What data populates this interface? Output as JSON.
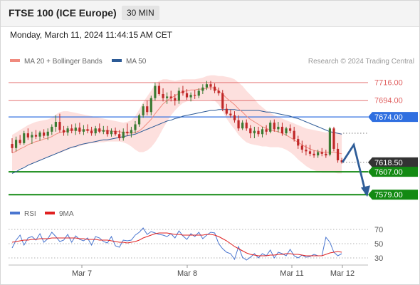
{
  "header": {
    "title": "FTSE 100 (ICE Europe)",
    "interval": "30 MIN"
  },
  "datetime": "Monday, March 11, 2024 11:44:15 AM CET",
  "legend": {
    "main": [
      {
        "label": "MA 20 + Bollinger Bands",
        "color": "#f08a7e"
      },
      {
        "label": "MA 50",
        "color": "#2c5a96"
      }
    ],
    "indicator": [
      {
        "label": "RSI",
        "color": "#4a76d0"
      },
      {
        "label": "9MA",
        "color": "#e02020"
      }
    ]
  },
  "credit": "Research © 2024 Trading Central",
  "colors": {
    "bull": "#3a7a32",
    "bear": "#c02828",
    "band_fill": "#fde0de",
    "ma20": "#f08a7e",
    "ma50": "#2c5a96",
    "pivot": "#2f6fe0",
    "support": "#138a13",
    "resistance": "#e06060",
    "arrow": "#2f5d98",
    "current": "#333333"
  },
  "chart_data": [
    {
      "type": "candlestick",
      "title": "FTSE 100 (ICE Europe) 30 MIN",
      "y_range": [
        7567,
        7729
      ],
      "levels": [
        {
          "value": 7716.0,
          "label": "7716.00",
          "kind": "resistance"
        },
        {
          "value": 7694.0,
          "label": "7694.00",
          "kind": "resistance"
        },
        {
          "value": 7674.0,
          "label": "7674.00",
          "kind": "pivot"
        },
        {
          "value": 7618.5,
          "label": "7618.50",
          "kind": "current"
        },
        {
          "value": 7607.0,
          "label": "7607.00",
          "kind": "support"
        },
        {
          "value": 7579.0,
          "label": "7579.00",
          "kind": "support"
        }
      ],
      "x_ticks": [
        "Mar 7",
        "Mar 8",
        "Mar 11",
        "Mar 12"
      ],
      "candles": [
        {
          "o": 7641,
          "h": 7648,
          "l": 7630,
          "c": 7636
        },
        {
          "o": 7636,
          "h": 7650,
          "l": 7632,
          "c": 7646
        },
        {
          "o": 7646,
          "h": 7652,
          "l": 7640,
          "c": 7642
        },
        {
          "o": 7642,
          "h": 7657,
          "l": 7640,
          "c": 7654
        },
        {
          "o": 7654,
          "h": 7660,
          "l": 7646,
          "c": 7649
        },
        {
          "o": 7649,
          "h": 7656,
          "l": 7641,
          "c": 7652
        },
        {
          "o": 7652,
          "h": 7658,
          "l": 7647,
          "c": 7650
        },
        {
          "o": 7650,
          "h": 7657,
          "l": 7645,
          "c": 7655
        },
        {
          "o": 7655,
          "h": 7659,
          "l": 7648,
          "c": 7651
        },
        {
          "o": 7651,
          "h": 7660,
          "l": 7646,
          "c": 7656
        },
        {
          "o": 7656,
          "h": 7665,
          "l": 7652,
          "c": 7662
        },
        {
          "o": 7662,
          "h": 7676,
          "l": 7656,
          "c": 7668
        },
        {
          "o": 7668,
          "h": 7678,
          "l": 7655,
          "c": 7658
        },
        {
          "o": 7658,
          "h": 7663,
          "l": 7651,
          "c": 7655
        },
        {
          "o": 7655,
          "h": 7663,
          "l": 7651,
          "c": 7660
        },
        {
          "o": 7660,
          "h": 7665,
          "l": 7654,
          "c": 7657
        },
        {
          "o": 7657,
          "h": 7666,
          "l": 7652,
          "c": 7661
        },
        {
          "o": 7661,
          "h": 7667,
          "l": 7653,
          "c": 7656
        },
        {
          "o": 7656,
          "h": 7664,
          "l": 7652,
          "c": 7659
        },
        {
          "o": 7659,
          "h": 7665,
          "l": 7654,
          "c": 7657
        },
        {
          "o": 7657,
          "h": 7662,
          "l": 7651,
          "c": 7654
        },
        {
          "o": 7654,
          "h": 7663,
          "l": 7651,
          "c": 7660
        },
        {
          "o": 7660,
          "h": 7666,
          "l": 7654,
          "c": 7656
        },
        {
          "o": 7656,
          "h": 7663,
          "l": 7653,
          "c": 7658
        },
        {
          "o": 7658,
          "h": 7663,
          "l": 7650,
          "c": 7653
        },
        {
          "o": 7653,
          "h": 7660,
          "l": 7650,
          "c": 7657
        },
        {
          "o": 7657,
          "h": 7661,
          "l": 7651,
          "c": 7653
        },
        {
          "o": 7653,
          "h": 7658,
          "l": 7645,
          "c": 7648
        },
        {
          "o": 7648,
          "h": 7660,
          "l": 7645,
          "c": 7656
        },
        {
          "o": 7656,
          "h": 7666,
          "l": 7651,
          "c": 7654
        },
        {
          "o": 7654,
          "h": 7662,
          "l": 7649,
          "c": 7658
        },
        {
          "o": 7658,
          "h": 7669,
          "l": 7654,
          "c": 7665
        },
        {
          "o": 7665,
          "h": 7678,
          "l": 7662,
          "c": 7676
        },
        {
          "o": 7676,
          "h": 7690,
          "l": 7673,
          "c": 7687
        },
        {
          "o": 7687,
          "h": 7694,
          "l": 7676,
          "c": 7680
        },
        {
          "o": 7680,
          "h": 7700,
          "l": 7676,
          "c": 7697
        },
        {
          "o": 7697,
          "h": 7716,
          "l": 7694,
          "c": 7712
        },
        {
          "o": 7712,
          "h": 7716,
          "l": 7700,
          "c": 7702
        },
        {
          "o": 7702,
          "h": 7709,
          "l": 7693,
          "c": 7697
        },
        {
          "o": 7697,
          "h": 7704,
          "l": 7690,
          "c": 7699
        },
        {
          "o": 7699,
          "h": 7706,
          "l": 7693,
          "c": 7697
        },
        {
          "o": 7697,
          "h": 7702,
          "l": 7688,
          "c": 7694
        },
        {
          "o": 7694,
          "h": 7710,
          "l": 7690,
          "c": 7706
        },
        {
          "o": 7706,
          "h": 7712,
          "l": 7700,
          "c": 7703
        },
        {
          "o": 7703,
          "h": 7708,
          "l": 7695,
          "c": 7698
        },
        {
          "o": 7698,
          "h": 7704,
          "l": 7693,
          "c": 7701
        },
        {
          "o": 7701,
          "h": 7707,
          "l": 7696,
          "c": 7700
        },
        {
          "o": 7700,
          "h": 7709,
          "l": 7697,
          "c": 7706
        },
        {
          "o": 7706,
          "h": 7714,
          "l": 7702,
          "c": 7710
        },
        {
          "o": 7710,
          "h": 7718,
          "l": 7707,
          "c": 7714
        },
        {
          "o": 7714,
          "h": 7718,
          "l": 7707,
          "c": 7711
        },
        {
          "o": 7711,
          "h": 7715,
          "l": 7703,
          "c": 7706
        },
        {
          "o": 7706,
          "h": 7710,
          "l": 7700,
          "c": 7703
        },
        {
          "o": 7703,
          "h": 7707,
          "l": 7681,
          "c": 7684
        },
        {
          "o": 7684,
          "h": 7690,
          "l": 7676,
          "c": 7678
        },
        {
          "o": 7678,
          "h": 7683,
          "l": 7673,
          "c": 7676
        },
        {
          "o": 7676,
          "h": 7681,
          "l": 7667,
          "c": 7670
        },
        {
          "o": 7670,
          "h": 7676,
          "l": 7657,
          "c": 7660
        },
        {
          "o": 7660,
          "h": 7670,
          "l": 7658,
          "c": 7667
        },
        {
          "o": 7667,
          "h": 7671,
          "l": 7657,
          "c": 7660
        },
        {
          "o": 7660,
          "h": 7664,
          "l": 7648,
          "c": 7654
        },
        {
          "o": 7654,
          "h": 7662,
          "l": 7648,
          "c": 7657
        },
        {
          "o": 7657,
          "h": 7662,
          "l": 7650,
          "c": 7653
        },
        {
          "o": 7653,
          "h": 7662,
          "l": 7649,
          "c": 7659
        },
        {
          "o": 7659,
          "h": 7664,
          "l": 7652,
          "c": 7656
        },
        {
          "o": 7656,
          "h": 7670,
          "l": 7654,
          "c": 7667
        },
        {
          "o": 7667,
          "h": 7671,
          "l": 7656,
          "c": 7659
        },
        {
          "o": 7659,
          "h": 7668,
          "l": 7655,
          "c": 7662
        },
        {
          "o": 7662,
          "h": 7667,
          "l": 7651,
          "c": 7654
        },
        {
          "o": 7654,
          "h": 7662,
          "l": 7651,
          "c": 7660
        },
        {
          "o": 7660,
          "h": 7665,
          "l": 7654,
          "c": 7657
        },
        {
          "o": 7657,
          "h": 7662,
          "l": 7644,
          "c": 7647
        },
        {
          "o": 7647,
          "h": 7651,
          "l": 7635,
          "c": 7639
        },
        {
          "o": 7639,
          "h": 7645,
          "l": 7630,
          "c": 7634
        },
        {
          "o": 7634,
          "h": 7640,
          "l": 7627,
          "c": 7632
        },
        {
          "o": 7632,
          "h": 7640,
          "l": 7626,
          "c": 7629
        },
        {
          "o": 7629,
          "h": 7633,
          "l": 7624,
          "c": 7627
        },
        {
          "o": 7627,
          "h": 7634,
          "l": 7624,
          "c": 7631
        },
        {
          "o": 7631,
          "h": 7636,
          "l": 7626,
          "c": 7629
        },
        {
          "o": 7629,
          "h": 7634,
          "l": 7624,
          "c": 7627
        },
        {
          "o": 7628,
          "h": 7662,
          "l": 7626,
          "c": 7660
        },
        {
          "o": 7660,
          "h": 7662,
          "l": 7632,
          "c": 7635
        },
        {
          "o": 7635,
          "h": 7642,
          "l": 7618,
          "c": 7621
        },
        {
          "o": 7621,
          "h": 7624,
          "l": 7617,
          "c": 7618.5
        }
      ],
      "bollinger": {
        "upper": [
          7652,
          7655,
          7658,
          7661,
          7664,
          7666,
          7668,
          7669,
          7670,
          7671,
          7673,
          7677,
          7680,
          7681,
          7681,
          7680,
          7679,
          7678,
          7677,
          7676,
          7675,
          7674,
          7673,
          7672,
          7671,
          7670,
          7669,
          7668,
          7667,
          7668,
          7670,
          7675,
          7683,
          7692,
          7699,
          7706,
          7714,
          7718,
          7720,
          7720,
          7719,
          7718,
          7719,
          7720,
          7720,
          7720,
          7720,
          7721,
          7722,
          7724,
          7725,
          7725,
          7724,
          7724,
          7723,
          7722,
          7720,
          7716,
          7712,
          7706,
          7701,
          7696,
          7690,
          7686,
          7682,
          7679,
          7676,
          7674,
          7672,
          7670,
          7668,
          7666,
          7664,
          7662,
          7660,
          7659,
          7658,
          7657,
          7656,
          7655,
          7656,
          7656,
          7655,
          7654
        ],
        "lower": [
          7608,
          7609,
          7611,
          7613,
          7615,
          7617,
          7619,
          7621,
          7623,
          7625,
          7627,
          7629,
          7630,
          7632,
          7634,
          7636,
          7637,
          7638,
          7640,
          7641,
          7642,
          7642,
          7643,
          7643,
          7644,
          7644,
          7644,
          7644,
          7643,
          7641,
          7638,
          7634,
          7631,
          7631,
          7633,
          7637,
          7643,
          7651,
          7660,
          7668,
          7676,
          7682,
          7687,
          7691,
          7693,
          7694,
          7695,
          7695,
          7695,
          7695,
          7695,
          7694,
          7689,
          7681,
          7672,
          7665,
          7659,
          7652,
          7647,
          7643,
          7641,
          7640,
          7639,
          7638,
          7638,
          7637,
          7637,
          7637,
          7636,
          7634,
          7631,
          7627,
          7622,
          7618,
          7614,
          7611,
          7609,
          7607,
          7606,
          7606,
          7606,
          7606,
          7605,
          7605
        ]
      },
      "ma50": [
        7605,
        7607,
        7610,
        7612,
        7615,
        7617,
        7619,
        7621,
        7623,
        7625,
        7627,
        7629,
        7631,
        7633,
        7635,
        7637,
        7638,
        7640,
        7641,
        7642,
        7643,
        7644,
        7645,
        7646,
        7646,
        7647,
        7648,
        7649,
        7650,
        7651,
        7652,
        7653,
        7655,
        7657,
        7659,
        7661,
        7663,
        7665,
        7667,
        7669,
        7670,
        7672,
        7673,
        7675,
        7676,
        7677,
        7678,
        7679,
        7680,
        7681,
        7682,
        7682,
        7683,
        7683,
        7683,
        7683,
        7683,
        7682,
        7682,
        7682,
        7682,
        7682,
        7682,
        7681,
        7680,
        7680,
        7679,
        7678,
        7677,
        7676,
        7675,
        7673,
        7672,
        7670,
        7668,
        7666,
        7664,
        7662,
        7660,
        7658,
        7656,
        7655,
        7654,
        7653
      ],
      "ma20": [
        7630,
        7632,
        7635,
        7637,
        7640,
        7642,
        7644,
        7645,
        7647,
        7648,
        7650,
        7653,
        7655,
        7656,
        7657,
        7658,
        7658,
        7658,
        7658,
        7658,
        7658,
        7658,
        7658,
        7657,
        7657,
        7657,
        7656,
        7656,
        7655,
        7655,
        7654,
        7655,
        7657,
        7661,
        7666,
        7671,
        7678,
        7684,
        7690,
        7694,
        7697,
        7700,
        7703,
        7705,
        7706,
        7707,
        7707,
        7708,
        7708,
        7709,
        7710,
        7709,
        7706,
        7702,
        7697,
        7693,
        7689,
        7684,
        7680,
        7675,
        7671,
        7668,
        7665,
        7662,
        7660,
        7658,
        7657,
        7656,
        7654,
        7652,
        7649,
        7646,
        7643,
        7640,
        7637,
        7635,
        7633,
        7632,
        7631,
        7631,
        7631,
        7631,
        7630,
        7629
      ],
      "forecast_path": [
        7618.5,
        7640,
        7579
      ]
    },
    {
      "type": "line",
      "title": "RSI",
      "y_range": [
        20,
        80
      ],
      "y_ticks": [
        70,
        50,
        30
      ],
      "series": [
        {
          "name": "RSI",
          "values": [
            44,
            55,
            62,
            48,
            58,
            60,
            55,
            64,
            52,
            57,
            66,
            60,
            53,
            55,
            63,
            52,
            61,
            56,
            54,
            58,
            48,
            60,
            58,
            53,
            51,
            60,
            47,
            45,
            55,
            54,
            55,
            62,
            66,
            72,
            63,
            67,
            65,
            63,
            62,
            60,
            64,
            58,
            68,
            61,
            56,
            64,
            60,
            66,
            57,
            62,
            66,
            65,
            50,
            43,
            38,
            36,
            28,
            46,
            31,
            27,
            31,
            36,
            30,
            36,
            33,
            41,
            30,
            38,
            36,
            33,
            42,
            33,
            30,
            34,
            31,
            32,
            35,
            33,
            33,
            59,
            52,
            38,
            33,
            36
          ]
        },
        {
          "name": "9MA",
          "values": [
            52,
            53,
            54,
            55,
            55,
            56,
            56,
            57,
            57,
            57,
            58,
            58,
            58,
            58,
            58,
            58,
            58,
            57,
            57,
            56,
            56,
            56,
            55,
            55,
            55,
            54,
            53,
            52,
            52,
            51,
            52,
            53,
            55,
            58,
            60,
            62,
            64,
            65,
            65,
            65,
            64,
            63,
            63,
            62,
            62,
            62,
            62,
            62,
            62,
            63,
            63,
            62,
            60,
            57,
            54,
            50,
            46,
            43,
            40,
            37,
            35,
            34,
            33,
            33,
            33,
            34,
            34,
            35,
            35,
            36,
            36,
            35,
            35,
            34,
            33,
            33,
            33,
            33,
            33,
            35,
            37,
            38,
            39,
            38
          ]
        }
      ]
    }
  ]
}
